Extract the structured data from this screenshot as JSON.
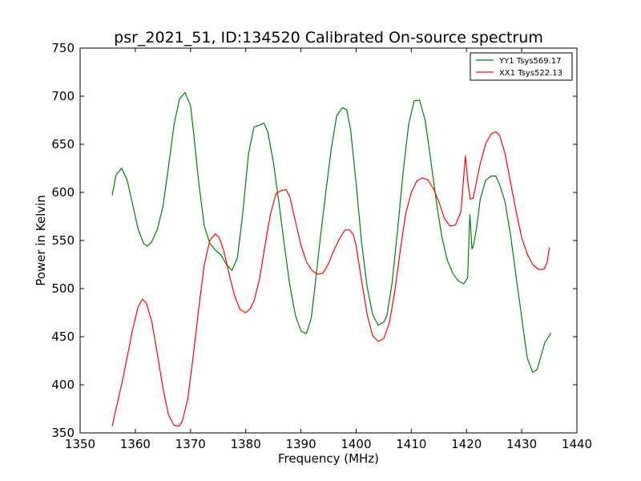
{
  "chart_data": {
    "type": "line",
    "title": "psr_2021_51, ID:134520 Calibrated On-source spectrum",
    "xlabel": "Frequency (MHz)",
    "ylabel": "Power in Kelvin",
    "xlim": [
      1350,
      1440
    ],
    "ylim": [
      350,
      750
    ],
    "xticks": [
      "1350",
      "1360",
      "1370",
      "1380",
      "1390",
      "1400",
      "1410",
      "1420",
      "1430",
      "1440"
    ],
    "yticks": [
      "350",
      "400",
      "450",
      "500",
      "550",
      "600",
      "650",
      "700",
      "750"
    ],
    "grid": false,
    "legend_position": "top-right",
    "series": [
      {
        "name": "YY1 Tsys569.17",
        "color": "#008000",
        "x": [
          1355.8,
          1356.5,
          1357.5,
          1358.5,
          1359.5,
          1360.5,
          1361.5,
          1362.2,
          1363,
          1364,
          1365,
          1366,
          1367,
          1368,
          1369,
          1370,
          1370.6,
          1371.5,
          1372.5,
          1373.5,
          1374.5,
          1375.5,
          1376.5,
          1377.5,
          1378.5,
          1379.5,
          1380.5,
          1381.5,
          1382.5,
          1383.3,
          1384,
          1385,
          1386,
          1387,
          1388,
          1389,
          1390,
          1391,
          1391.9,
          1392.5,
          1393.5,
          1394.5,
          1395.5,
          1396.5,
          1397.5,
          1398.3,
          1399,
          1400,
          1401,
          1402,
          1403,
          1404,
          1405,
          1405.6,
          1406.5,
          1407.5,
          1408.5,
          1409.5,
          1410.5,
          1411.5,
          1412.5,
          1413.5,
          1414.5,
          1415.5,
          1416.5,
          1417.5,
          1418.5,
          1419.5,
          1420.2,
          1420.6,
          1420.8,
          1421,
          1421.3,
          1421.8,
          1422.5,
          1423.5,
          1424.5,
          1425.3,
          1426,
          1427,
          1428,
          1429,
          1430,
          1431,
          1432,
          1432.8,
          1433.5,
          1434.2,
          1435,
          1435.3
        ],
        "y": [
          597,
          618,
          625,
          613,
          588,
          562,
          547,
          544,
          549,
          562,
          585,
          626,
          670,
          697,
          704,
          690,
          660,
          610,
          565,
          547,
          540,
          535,
          525,
          519,
          532,
          580,
          640,
          668,
          670,
          672,
          663,
          632,
          590,
          545,
          503,
          472,
          456,
          453,
          470,
          500,
          552,
          600,
          645,
          680,
          688,
          686,
          665,
          610,
          548,
          502,
          473,
          462,
          465,
          472,
          505,
          560,
          620,
          670,
          695,
          696,
          675,
          635,
          592,
          555,
          530,
          516,
          508,
          505,
          511,
          577,
          560,
          541,
          546,
          562,
          593,
          613,
          617,
          617,
          608,
          590,
          555,
          512,
          470,
          428,
          413,
          416,
          430,
          444,
          451,
          454
        ]
      },
      {
        "name": "XX1 Tsys522.13",
        "color": "#ff0000",
        "x": [
          1355.8,
          1356.5,
          1357.5,
          1358.5,
          1359.5,
          1360.5,
          1361.3,
          1362,
          1363,
          1364,
          1365,
          1366,
          1367,
          1367.9,
          1368.5,
          1369.5,
          1370.5,
          1371.5,
          1372.5,
          1373.5,
          1374.5,
          1375.2,
          1376,
          1377,
          1378,
          1379,
          1380,
          1380.8,
          1381.5,
          1382.5,
          1383.5,
          1384.5,
          1385.5,
          1386.5,
          1387.3,
          1388,
          1389,
          1390,
          1391,
          1392,
          1393,
          1394,
          1395,
          1396,
          1397,
          1398,
          1398.8,
          1399.5,
          1400,
          1401,
          1402,
          1403,
          1404,
          1405,
          1406,
          1407,
          1408,
          1409,
          1410,
          1411,
          1412,
          1413,
          1414,
          1415,
          1416,
          1417,
          1418,
          1419,
          1419.8,
          1420.3,
          1420.7,
          1421.2,
          1421.7,
          1422.5,
          1423.5,
          1424.5,
          1425.3,
          1426,
          1427,
          1428,
          1429,
          1430,
          1431,
          1432,
          1433,
          1434,
          1434.6,
          1435
        ],
        "y": [
          357,
          375,
          400,
          428,
          457,
          481,
          489,
          485,
          465,
          432,
          397,
          369,
          358,
          357,
          362,
          385,
          430,
          480,
          525,
          550,
          557,
          553,
          540,
          515,
          492,
          478,
          475,
          479,
          487,
          510,
          545,
          578,
          599,
          602,
          603,
          595,
          570,
          545,
          528,
          519,
          515,
          516,
          526,
          540,
          552,
          561,
          561,
          556,
          545,
          508,
          473,
          451,
          445,
          448,
          464,
          497,
          540,
          578,
          600,
          612,
          615,
          613,
          604,
          590,
          573,
          565,
          566,
          580,
          638,
          608,
          593,
          594,
          608,
          630,
          651,
          661,
          663,
          659,
          640,
          610,
          580,
          553,
          536,
          525,
          520,
          520,
          527,
          543
        ]
      }
    ]
  }
}
